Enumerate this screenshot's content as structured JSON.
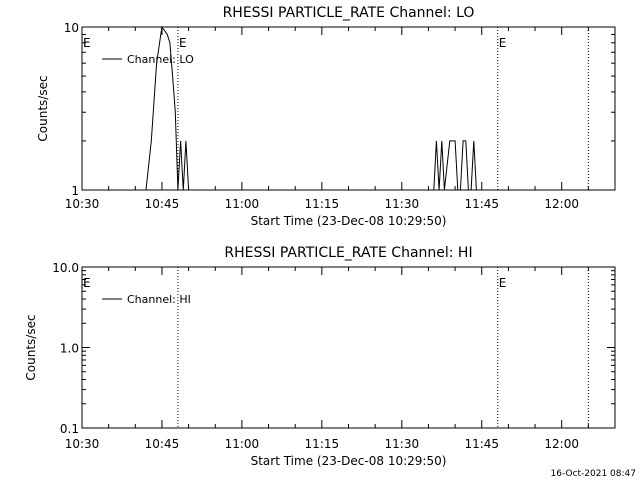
{
  "footer": {
    "timestamp": "16-Oct-2021 08:47"
  },
  "chart_data": [
    {
      "type": "line",
      "title": "RHESSI PARTICLE_RATE Channel: LO",
      "xlabel": "Start Time (23-Dec-08 10:29:50)",
      "ylabel": "Counts/sec",
      "yscale": "log",
      "ylim": [
        1,
        10
      ],
      "yticks": [
        {
          "v": 1,
          "label": "1"
        },
        {
          "v": 10,
          "label": "10"
        }
      ],
      "xlim": [
        "10:30",
        "12:10"
      ],
      "xticks": [
        "10:30",
        "10:45",
        "11:00",
        "11:15",
        "11:30",
        "11:45",
        "12:00"
      ],
      "grid": false,
      "legend": {
        "position": "top-left",
        "label": "Channel: LO"
      },
      "event_markers": [
        {
          "time": "10:48",
          "label": "E"
        },
        {
          "time": "11:48",
          "label": "E"
        },
        {
          "time": "12:05",
          "label": ""
        }
      ],
      "edge_labels": [
        {
          "side": "left",
          "label": "E"
        }
      ],
      "series": [
        {
          "name": "Channel: LO",
          "points": [
            [
              "10:30",
              1
            ],
            [
              "10:42",
              1
            ],
            [
              "10:43",
              2
            ],
            [
              "10:44",
              6
            ],
            [
              "10:45",
              10
            ],
            [
              "10:46",
              9
            ],
            [
              "10:46:30",
              8
            ],
            [
              "10:47",
              5
            ],
            [
              "10:47:30",
              3
            ],
            [
              "10:48",
              1
            ],
            [
              "10:48:30",
              2
            ],
            [
              "10:49",
              1
            ],
            [
              "10:49:30",
              2
            ],
            [
              "10:50",
              1
            ],
            [
              "11:36",
              1
            ],
            [
              "11:36:30",
              2
            ],
            [
              "11:37",
              1
            ],
            [
              "11:37:30",
              2
            ],
            [
              "11:38",
              1
            ],
            [
              "11:39",
              2
            ],
            [
              "11:40",
              2
            ],
            [
              "11:40:30",
              1
            ],
            [
              "11:41",
              1
            ],
            [
              "11:41:30",
              2
            ],
            [
              "11:42",
              2
            ],
            [
              "11:42:30",
              1
            ],
            [
              "11:43",
              1
            ],
            [
              "11:43:30",
              2
            ],
            [
              "11:44",
              1
            ],
            [
              "11:45",
              1
            ]
          ]
        }
      ]
    },
    {
      "type": "line",
      "title": "RHESSI PARTICLE_RATE Channel: HI",
      "xlabel": "Start Time (23-Dec-08 10:29:50)",
      "ylabel": "Counts/sec",
      "yscale": "log",
      "ylim": [
        0.1,
        10
      ],
      "yticks": [
        {
          "v": 0.1,
          "label": "0.1"
        },
        {
          "v": 1,
          "label": "1.0"
        },
        {
          "v": 10,
          "label": "10.0"
        }
      ],
      "xlim": [
        "10:30",
        "12:10"
      ],
      "xticks": [
        "10:30",
        "10:45",
        "11:00",
        "11:15",
        "11:30",
        "11:45",
        "12:00"
      ],
      "grid": false,
      "legend": {
        "position": "top-left",
        "label": "Channel: HI"
      },
      "event_markers": [
        {
          "time": "10:48",
          "label": ""
        },
        {
          "time": "11:48",
          "label": "E"
        },
        {
          "time": "12:05",
          "label": ""
        }
      ],
      "edge_labels": [
        {
          "side": "left",
          "label": "E"
        }
      ],
      "series": [
        {
          "name": "Channel: HI",
          "points": []
        }
      ]
    }
  ]
}
